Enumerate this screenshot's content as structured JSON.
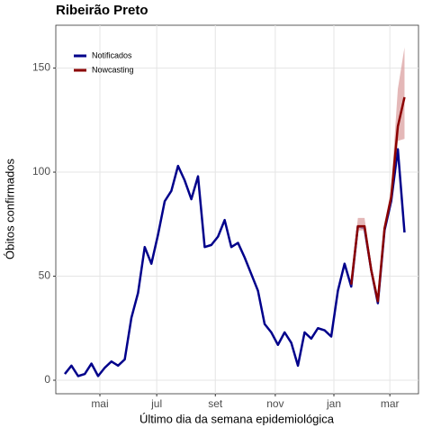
{
  "chart_data": {
    "type": "line",
    "title": "Ribeirão Preto",
    "x_label": "Último dia da semana epidemiológica",
    "y_label": "Óbitos confirmados",
    "series": [
      {
        "name": "Notificados",
        "color": "#00008b",
        "x": [
          0,
          1,
          2,
          3,
          4,
          5,
          6,
          7,
          8,
          9,
          10,
          11,
          12,
          13,
          14,
          15,
          16,
          17,
          18,
          19,
          20,
          21,
          22,
          23,
          24,
          25,
          26,
          27,
          28,
          29,
          30,
          31,
          32,
          33,
          34,
          35,
          36,
          37,
          38,
          39,
          40,
          41,
          42,
          43,
          44,
          45,
          46,
          47,
          48,
          49,
          50,
          51
        ],
        "values": [
          3,
          7,
          2,
          3,
          8,
          2,
          6,
          9,
          7,
          10,
          30,
          42,
          64,
          56,
          70,
          86,
          91,
          103,
          96,
          87,
          98,
          64,
          65,
          69,
          77,
          64,
          66,
          59,
          51,
          43,
          27,
          23,
          17,
          23,
          18,
          7,
          23,
          20,
          25,
          24,
          21,
          43,
          56,
          45,
          74,
          73,
          53,
          37,
          72,
          86,
          111,
          71
        ]
      },
      {
        "name": "Nowcasting",
        "color": "#8b0000",
        "band_color": "#d99a9a",
        "x": [
          43,
          44,
          45,
          46,
          47,
          48,
          49,
          50,
          51
        ],
        "values": [
          46,
          74,
          74,
          53,
          38,
          73,
          88,
          122,
          136
        ],
        "lower": [
          45,
          72,
          72,
          52,
          37,
          72,
          85,
          115,
          116
        ],
        "upper": [
          47,
          78,
          78,
          55,
          39,
          75,
          92,
          140,
          160
        ]
      }
    ],
    "xlim": [
      -1.35,
      53.1
    ],
    "xticks": [
      {
        "value": 5.27,
        "label": "mai"
      },
      {
        "value": 13.8,
        "label": "jul"
      },
      {
        "value": 22.6,
        "label": "set"
      },
      {
        "value": 31.6,
        "label": "nov"
      },
      {
        "value": 40.4,
        "label": "jan"
      },
      {
        "value": 48.8,
        "label": "mar"
      }
    ],
    "ylim": [
      -6.5,
      170.6
    ],
    "yticks": [
      0,
      50,
      100,
      150
    ],
    "grid": true,
    "legend": "top-left"
  }
}
